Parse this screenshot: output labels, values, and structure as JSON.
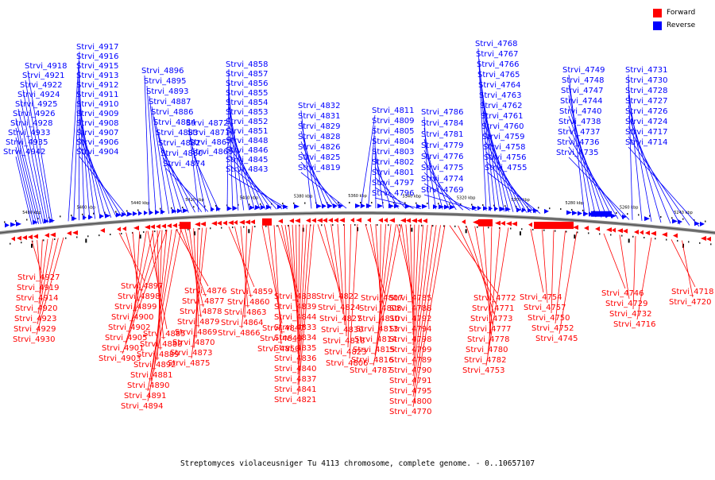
{
  "legend": {
    "forward": {
      "label": "Forward",
      "color": "#ff0000"
    },
    "reverse": {
      "label": "Reverse",
      "color": "#0000ff"
    }
  },
  "caption": "Streptomyces violaceusniger Tu 4113 chromosome, complete genome. - 0..10657107",
  "tick_labels": [
    "5480 kbp",
    "5460 kbp",
    "5440 kbp",
    "5420 kbp",
    "5400 kbp",
    "5380 kbp",
    "5360 kbp",
    "5340 kbp",
    "5320 kbp",
    "5300 kbp",
    "5280 kbp",
    "5260 kbp",
    "5240 kbp"
  ],
  "reverse_genes": [
    "Strvi_4942",
    "Strvi_4935",
    "Strvi_4933",
    "Strvi_4928",
    "Strvi_4926",
    "Strvi_4925",
    "Strvi_4924",
    "Strvi_4922",
    "Strvi_4921",
    "Strvi_4918",
    "Strvi_4917",
    "Strvi_4916",
    "Strvi_4915",
    "Strvi_4913",
    "Strvi_4912",
    "Strvi_4911",
    "Strvi_4910",
    "Strvi_4909",
    "Strvi_4908",
    "Strvi_4907",
    "Strvi_4906",
    "Strvi_4904",
    "Strvi_4896",
    "Strvi_4895",
    "Strvi_4893",
    "Strvi_4887",
    "Strvi_4886",
    "Strvi_4884",
    "Strvi_4883",
    "Strvi_4882",
    "Strvi_4880",
    "Strvi_4874",
    "Strvi_4872",
    "Strvi_4871",
    "Strvi_4867",
    "Strvi_4865",
    "Strvi_4858",
    "Strvi_4857",
    "Strvi_4856",
    "Strvi_4855",
    "Strvi_4854",
    "Strvi_4853",
    "Strvi_4852",
    "Strvi_4851",
    "Strvi_4848",
    "Strvi_4846",
    "Strvi_4845",
    "Strvi_4843",
    "Strvi_4832",
    "Strvi_4831",
    "Strvi_4829",
    "Strvi_4828",
    "Strvi_4826",
    "Strvi_4825",
    "Strvi_4819",
    "Strvi_4811",
    "Strvi_4809",
    "Strvi_4805",
    "Strvi_4804",
    "Strvi_4803",
    "Strvi_4802",
    "Strvi_4801",
    "Strvi_4797",
    "Strvi_4796",
    "Strvi_4786",
    "Strvi_4784",
    "Strvi_4781",
    "Strvi_4779",
    "Strvi_4776",
    "Strvi_4775",
    "Strvi_4774",
    "Strvi_4769",
    "Strvi_4768",
    "Strvi_4767",
    "Strvi_4766",
    "Strvi_4765",
    "Strvi_4764",
    "Strvi_4763",
    "Strvi_4762",
    "Strvi_4761",
    "Strvi_4760",
    "Strvi_4759",
    "Strvi_4758",
    "Strvi_4756",
    "Strvi_4755",
    "Strvi_4749",
    "Strvi_4748",
    "Strvi_4747",
    "Strvi_4744",
    "Strvi_4740",
    "Strvi_4738",
    "Strvi_4737",
    "Strvi_4736",
    "Strvi_4735",
    "Strvi_4731",
    "Strvi_4730",
    "Strvi_4728",
    "Strvi_4727",
    "Strvi_4726",
    "Strvi_4724",
    "Strvi_4717",
    "Strvi_4714"
  ],
  "forward_genes": [
    "Strvi_4927",
    "Strvi_4919",
    "Strvi_4914",
    "Strvi_4920",
    "Strvi_4923",
    "Strvi_4929",
    "Strvi_4930",
    "Strvi_4897",
    "Strvi_4898",
    "Strvi_4899",
    "Strvi_4900",
    "Strvi_4902",
    "Strvi_4905",
    "Strvi_4901",
    "Strvi_4903",
    "Strvi_4885",
    "Strvi_4888",
    "Strvi_4889",
    "Strvi_4892",
    "Strvi_4881",
    "Strvi_4890",
    "Strvi_4891",
    "Strvi_4894",
    "Strvi_4876",
    "Strvi_4877",
    "Strvi_4878",
    "Strvi_4879",
    "Strvi_4869",
    "Strvi_4870",
    "Strvi_4873",
    "Strvi_4875",
    "Strvi_4859",
    "Strvi_4860",
    "Strvi_4863",
    "Strvi_4864",
    "Strvi_4866",
    "Strvi_4847",
    "Strvi_4849",
    "Strvi_4850",
    "Strvi_4838",
    "Strvi_4839",
    "Strvi_4844",
    "Strvi_4833",
    "Strvi_4834",
    "Strvi_4835",
    "Strvi_4836",
    "Strvi_4840",
    "Strvi_4837",
    "Strvi_4841",
    "Strvi_4821",
    "Strvi_4822",
    "Strvi_4824",
    "Strvi_4827",
    "Strvi_4830",
    "Strvi_4818",
    "Strvi_4823",
    "Strvi_4806",
    "Strvi_4807",
    "Strvi_4808",
    "Strvi_4810",
    "Strvi_4813",
    "Strvi_4814",
    "Strvi_4815",
    "Strvi_4816",
    "Strvi_4787",
    "Strvi_4785",
    "Strvi_4788",
    "Strvi_4792",
    "Strvi_4794",
    "Strvi_4798",
    "Strvi_4799",
    "Strvi_4789",
    "Strvi_4790",
    "Strvi_4791",
    "Strvi_4795",
    "Strvi_4800",
    "Strvi_4770",
    "Strvi_4772",
    "Strvi_4771",
    "Strvi_4773",
    "Strvi_4777",
    "Strvi_4778",
    "Strvi_4780",
    "Strvi_4782",
    "Strvi_4753",
    "Strvi_4754",
    "Strvi_4757",
    "Strvi_4750",
    "Strvi_4752",
    "Strvi_4745",
    "Strvi_4746",
    "Strvi_4729",
    "Strvi_4732",
    "Strvi_4716",
    "Strvi_4718",
    "Strvi_4720"
  ]
}
